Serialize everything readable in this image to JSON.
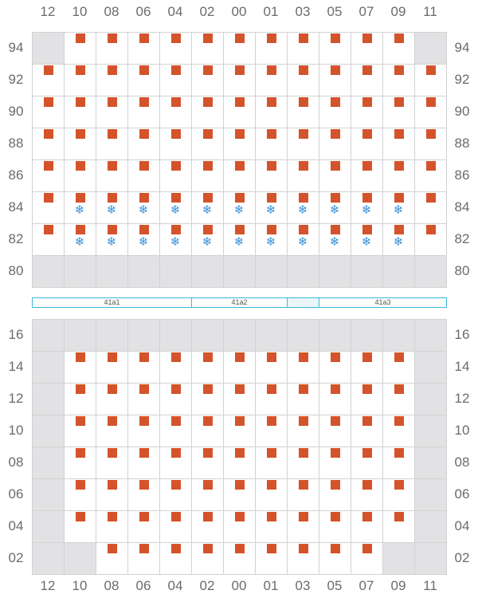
{
  "columns": [
    "12",
    "10",
    "08",
    "06",
    "04",
    "02",
    "00",
    "01",
    "03",
    "05",
    "07",
    "09",
    "11"
  ],
  "upper_rows": [
    "94",
    "92",
    "90",
    "88",
    "86",
    "84",
    "82",
    "80"
  ],
  "lower_rows": [
    "16",
    "14",
    "12",
    "10",
    "08",
    "06",
    "04",
    "02"
  ],
  "strip_labels": [
    "41a1",
    "41a2",
    "41a3"
  ],
  "legend_colors": {
    "occupied": "#d4532b",
    "cold": "#3a8fd6",
    "empty": "#e2e2e4",
    "strip": "#3ab8dc"
  },
  "icons": {
    "occupied": "square-marker-icon",
    "cold": "snowflake-icon"
  },
  "upper_grid": [
    "g o o o o o o o o o o o g",
    "o o o o o o o o o o o o o",
    "o o o o o o o o o o o o o",
    "o o o o o o o o o o o o o",
    "o o o o o o o o o o o o o",
    "o b b b b b b b b b b b o",
    "o b b b b b b b b b b b o",
    "g g g g g g g g g g g g g"
  ],
  "lower_grid": [
    "g g g g g g g g g g g g g",
    "g o o o o o o o o o o o g",
    "g o o o o o o o o o o o g",
    "g o o o o o o o o o o o g",
    "g o o o o o o o o o o o g",
    "g o o o o o o o o o o o g",
    "g o o o o o o o o o o o g",
    "g g o o o o o o o o o g g"
  ]
}
